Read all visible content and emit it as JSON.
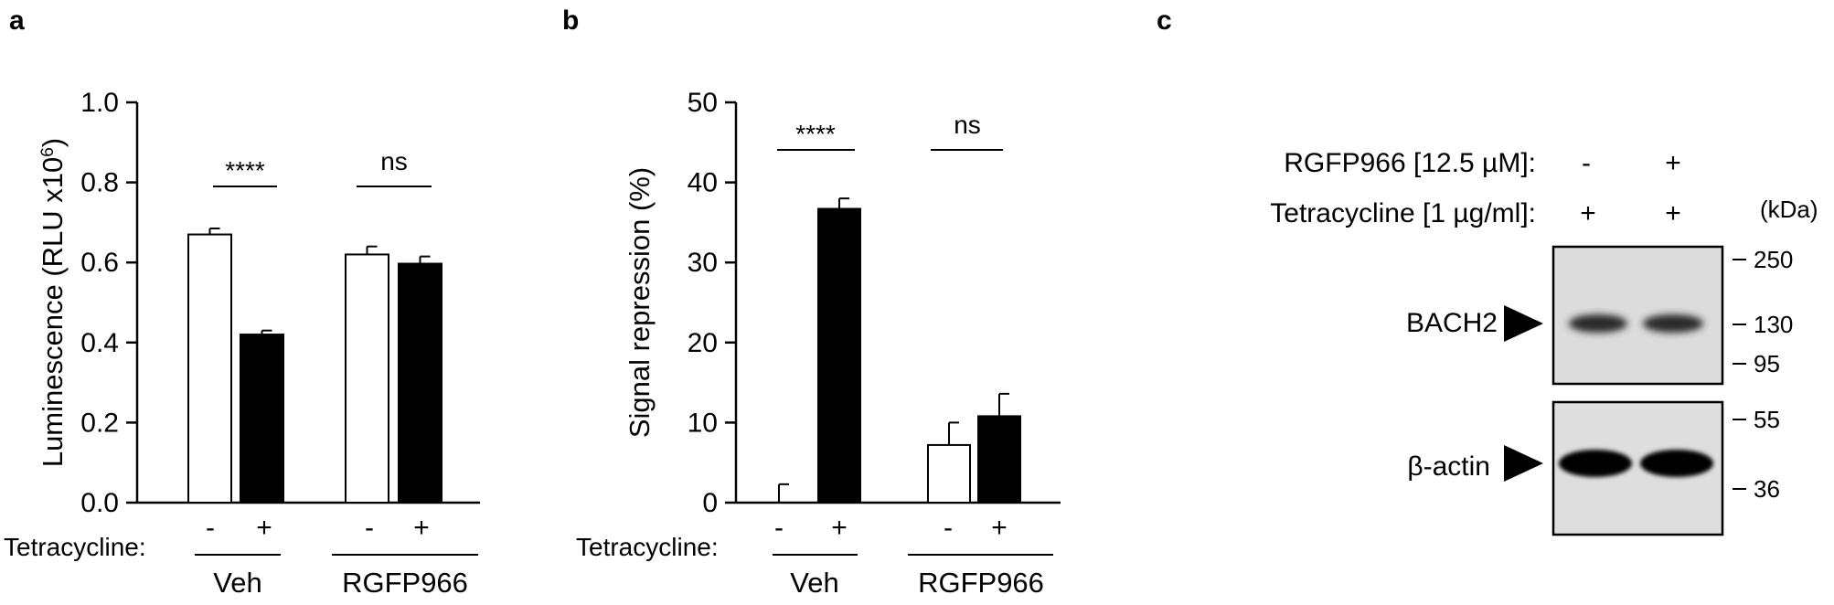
{
  "panels": {
    "a": {
      "letter": "a"
    },
    "b": {
      "letter": "b"
    },
    "c": {
      "letter": "c"
    }
  },
  "chart_data": [
    {
      "panel": "a",
      "type": "bar",
      "ylabel": "Luminescence (RLU x10",
      "ylabel_sup": "6",
      "ylabel_end": ")",
      "ylim": [
        0,
        1.0
      ],
      "yticks": [
        "0.0",
        "0.2",
        "0.4",
        "0.6",
        "0.8",
        "1.0"
      ],
      "row_label": "Tetracycline:",
      "groups": [
        {
          "name": "Veh",
          "significance": "****"
        },
        {
          "name": "RGFP966",
          "significance": "ns"
        }
      ],
      "bars": [
        {
          "group": "Veh",
          "tetracycline": "-",
          "value": 0.67,
          "error": 0.015,
          "fill": "#ffffff"
        },
        {
          "group": "Veh",
          "tetracycline": "+",
          "value": 0.42,
          "error": 0.01,
          "fill": "#000000"
        },
        {
          "group": "RGFP966",
          "tetracycline": "-",
          "value": 0.62,
          "error": 0.02,
          "fill": "#ffffff"
        },
        {
          "group": "RGFP966",
          "tetracycline": "+",
          "value": 0.597,
          "error": 0.018,
          "fill": "#000000"
        }
      ]
    },
    {
      "panel": "b",
      "type": "bar",
      "ylabel": "Signal repression (%)",
      "ylim": [
        0,
        50
      ],
      "yticks": [
        "0",
        "10",
        "20",
        "30",
        "40",
        "50"
      ],
      "row_label": "Tetracycline:",
      "groups": [
        {
          "name": "Veh",
          "significance": "****"
        },
        {
          "name": "RGFP966",
          "significance": "ns"
        }
      ],
      "bars": [
        {
          "group": "Veh",
          "tetracycline": "-",
          "value": 0.0,
          "error": 2.3,
          "fill": "#ffffff"
        },
        {
          "group": "Veh",
          "tetracycline": "+",
          "value": 36.7,
          "error": 1.3,
          "fill": "#000000"
        },
        {
          "group": "RGFP966",
          "tetracycline": "-",
          "value": 7.2,
          "error": 2.8,
          "fill": "#ffffff"
        },
        {
          "group": "RGFP966",
          "tetracycline": "+",
          "value": 10.8,
          "error": 2.8,
          "fill": "#000000"
        }
      ]
    }
  ],
  "blot": {
    "treatments": [
      {
        "label": "RGFP966 [12.5 µM]:",
        "lanes": [
          "-",
          "+"
        ]
      },
      {
        "label": "Tetracycline [1 µg/ml]:",
        "lanes": [
          "+",
          "+"
        ]
      }
    ],
    "kda_unit": "(kDa)",
    "rows": [
      {
        "protein": "BACH2",
        "markers": [
          "250",
          "130",
          "95"
        ],
        "background": "#dcdcdc"
      },
      {
        "protein": "β-actin",
        "markers": [
          "55",
          "36"
        ],
        "background": "#dedede"
      }
    ]
  }
}
